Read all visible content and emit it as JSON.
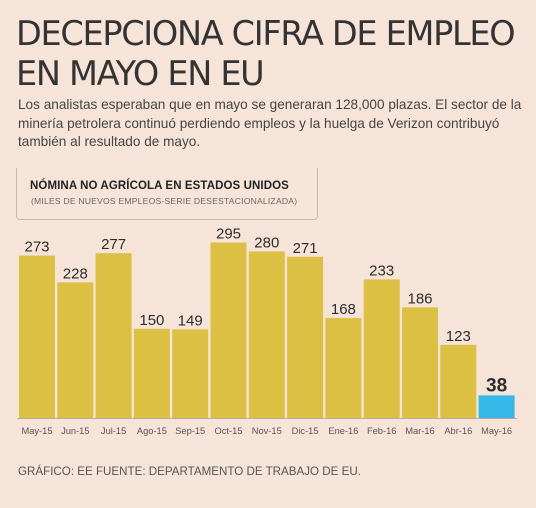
{
  "headline": "DECEPCIONA CIFRA DE EMPLEO EN MAYO EN EU",
  "subhead": "Los analistas esperaban que en mayo se generaran 128,000 plazas. El sector de la minería petrolera continuó perdiendo empleos y la huelga de Verizon contribuyó también al resultado de mayo.",
  "source": "GRÁFICO: EE FUENTE: DEPARTAMENTO DE TRABAJO DE EU.",
  "colors": {
    "bar": "#dcc044",
    "highlight": "#35b8e8",
    "background": "#f7e4d8"
  },
  "chart_data": {
    "type": "bar",
    "title": "NÓMINA NO AGRÍCOLA EN ESTADOS UNIDOS",
    "subtitle": "(MILES DE NUEVOS EMPLEOS-SERIE DESESTACIONALIZADA)",
    "categories": [
      "May-15",
      "Jun-15",
      "Jul-15",
      "Ago-15",
      "Sep-15",
      "Oct-15",
      "Nov-15",
      "Dic-15",
      "Ene-16",
      "Feb-16",
      "Mar-16",
      "Abr-16",
      "May-16"
    ],
    "values": [
      273,
      228,
      277,
      150,
      149,
      295,
      280,
      271,
      168,
      233,
      186,
      123,
      38
    ],
    "highlight_index": 12,
    "ylim": [
      0,
      330
    ],
    "grid": false,
    "xlabel": "",
    "ylabel": ""
  }
}
